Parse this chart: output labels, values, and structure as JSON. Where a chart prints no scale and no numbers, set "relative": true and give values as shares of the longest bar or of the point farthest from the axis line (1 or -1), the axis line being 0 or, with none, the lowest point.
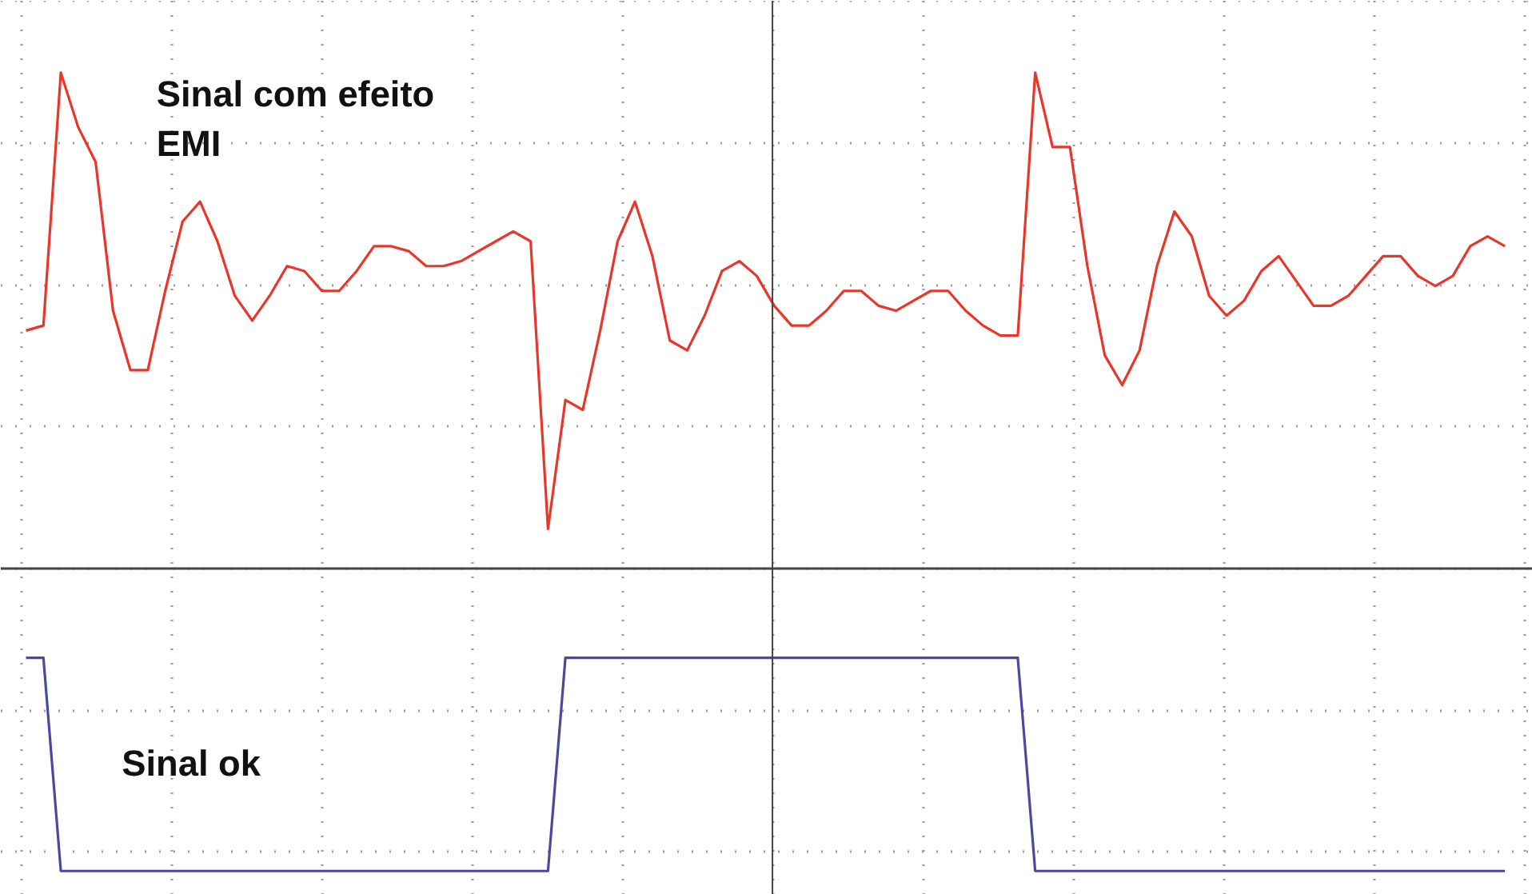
{
  "chart_data": {
    "type": "line",
    "relative": true,
    "grid": true,
    "marker": "none",
    "line_style": "solid",
    "categories": [
      null,
      null,
      null,
      null,
      null,
      null,
      null,
      null,
      null,
      null,
      null,
      null,
      null,
      null,
      null,
      null,
      null,
      null,
      null,
      null,
      null,
      null,
      null,
      null,
      null,
      null,
      null,
      null,
      null,
      null,
      null,
      null,
      null,
      null,
      null,
      null,
      null,
      null,
      null,
      null,
      null,
      null,
      null,
      null,
      null,
      null,
      null,
      null,
      null,
      null,
      null,
      null,
      null,
      null,
      null,
      null,
      null,
      null,
      null,
      null,
      null,
      null,
      null,
      null,
      null,
      null,
      null,
      null,
      null,
      null,
      null,
      null,
      null,
      null,
      null,
      null,
      null,
      null,
      null,
      null,
      null,
      null,
      null,
      null,
      null,
      null
    ],
    "series": [
      {
        "name": "Sinal com efeito EMI",
        "color": "#e8372a",
        "values": [
          0.48,
          0.49,
          1.0,
          0.89,
          0.82,
          0.52,
          0.4,
          0.4,
          0.56,
          0.7,
          0.74,
          0.66,
          0.55,
          0.5,
          0.55,
          0.61,
          0.6,
          0.56,
          0.56,
          0.6,
          0.65,
          0.65,
          0.64,
          0.61,
          0.61,
          0.62,
          0.64,
          0.66,
          0.68,
          0.66,
          0.08,
          0.34,
          0.32,
          0.48,
          0.66,
          0.74,
          0.63,
          0.46,
          0.44,
          0.51,
          0.6,
          0.62,
          0.59,
          0.53,
          0.49,
          0.49,
          0.52,
          0.56,
          0.56,
          0.53,
          0.52,
          0.54,
          0.56,
          0.56,
          0.52,
          0.49,
          0.47,
          0.47,
          1.0,
          0.85,
          0.85,
          0.61,
          0.43,
          0.37,
          0.44,
          0.61,
          0.72,
          0.67,
          0.55,
          0.51,
          0.54,
          0.6,
          0.63,
          0.58,
          0.53,
          0.53,
          0.55,
          0.59,
          0.63,
          0.63,
          0.59,
          0.57,
          0.59,
          0.65,
          0.67,
          0.65
        ]
      },
      {
        "name": "Sinal ok",
        "color": "#4a4a9a",
        "values": [
          -0.18,
          -0.18,
          -0.61,
          -0.61,
          -0.61,
          -0.61,
          -0.61,
          -0.61,
          -0.61,
          -0.61,
          -0.61,
          -0.61,
          -0.61,
          -0.61,
          -0.61,
          -0.61,
          -0.61,
          -0.61,
          -0.61,
          -0.61,
          -0.61,
          -0.61,
          -0.61,
          -0.61,
          -0.61,
          -0.61,
          -0.61,
          -0.61,
          -0.61,
          -0.61,
          -0.61,
          -0.18,
          -0.18,
          -0.18,
          -0.18,
          -0.18,
          -0.18,
          -0.18,
          -0.18,
          -0.18,
          -0.18,
          -0.18,
          -0.18,
          -0.18,
          -0.18,
          -0.18,
          -0.18,
          -0.18,
          -0.18,
          -0.18,
          -0.18,
          -0.18,
          -0.18,
          -0.18,
          -0.18,
          -0.18,
          -0.18,
          -0.18,
          -0.61,
          -0.61,
          -0.61,
          -0.61,
          -0.61,
          -0.61,
          -0.61,
          -0.61,
          -0.61,
          -0.61,
          -0.61,
          -0.61,
          -0.61,
          -0.61,
          -0.61,
          -0.61,
          -0.61,
          -0.61,
          -0.61,
          -0.61,
          -0.61,
          -0.61,
          -0.61,
          -0.61,
          -0.61,
          -0.61,
          -0.61,
          -0.61
        ]
      }
    ]
  }
}
